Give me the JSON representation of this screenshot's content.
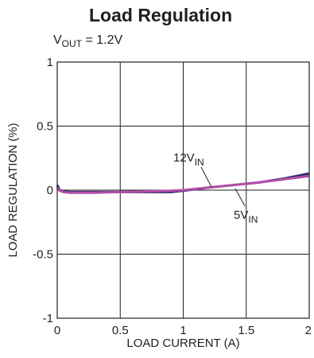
{
  "title": "Load Regulation",
  "subtitle": {
    "prefix": "V",
    "sub": "OUT",
    "suffix": " = 1.2V"
  },
  "chart_data": {
    "type": "line",
    "xlabel": "LOAD CURRENT (A)",
    "ylabel": "LOAD REGULATION (%)",
    "xlim": [
      0,
      2
    ],
    "ylim": [
      -1,
      1
    ],
    "xticks": [
      "0",
      "0.5",
      "1",
      "1.5",
      "2"
    ],
    "yticks": [
      "1",
      "0.5",
      "0",
      "-0.5",
      "-1"
    ],
    "grid": true,
    "series": [
      {
        "name": "12V_IN",
        "color": "#2e2a6e",
        "x": [
          0,
          0.02,
          0.05,
          0.1,
          0.3,
          0.5,
          0.7,
          0.9,
          1.0,
          1.2,
          1.4,
          1.6,
          1.8,
          2.0
        ],
        "y": [
          0.04,
          0.0,
          -0.01,
          -0.015,
          -0.015,
          -0.015,
          -0.015,
          -0.015,
          -0.005,
          0.02,
          0.04,
          0.06,
          0.09,
          0.13
        ]
      },
      {
        "name": "5V_IN",
        "color": "#b24fa8",
        "x": [
          0,
          0.02,
          0.05,
          0.1,
          0.3,
          0.5,
          0.7,
          0.9,
          1.0,
          1.2,
          1.4,
          1.6,
          1.8,
          2.0
        ],
        "y": [
          0.02,
          -0.005,
          -0.015,
          -0.02,
          -0.02,
          -0.015,
          -0.01,
          -0.005,
          0.0,
          0.02,
          0.04,
          0.06,
          0.085,
          0.11
        ]
      }
    ],
    "annotations": [
      {
        "label_main": "12V",
        "label_sub": "IN",
        "target_series": "12V_IN"
      },
      {
        "label_main": "5V",
        "label_sub": "IN",
        "target_series": "5V_IN"
      }
    ]
  }
}
